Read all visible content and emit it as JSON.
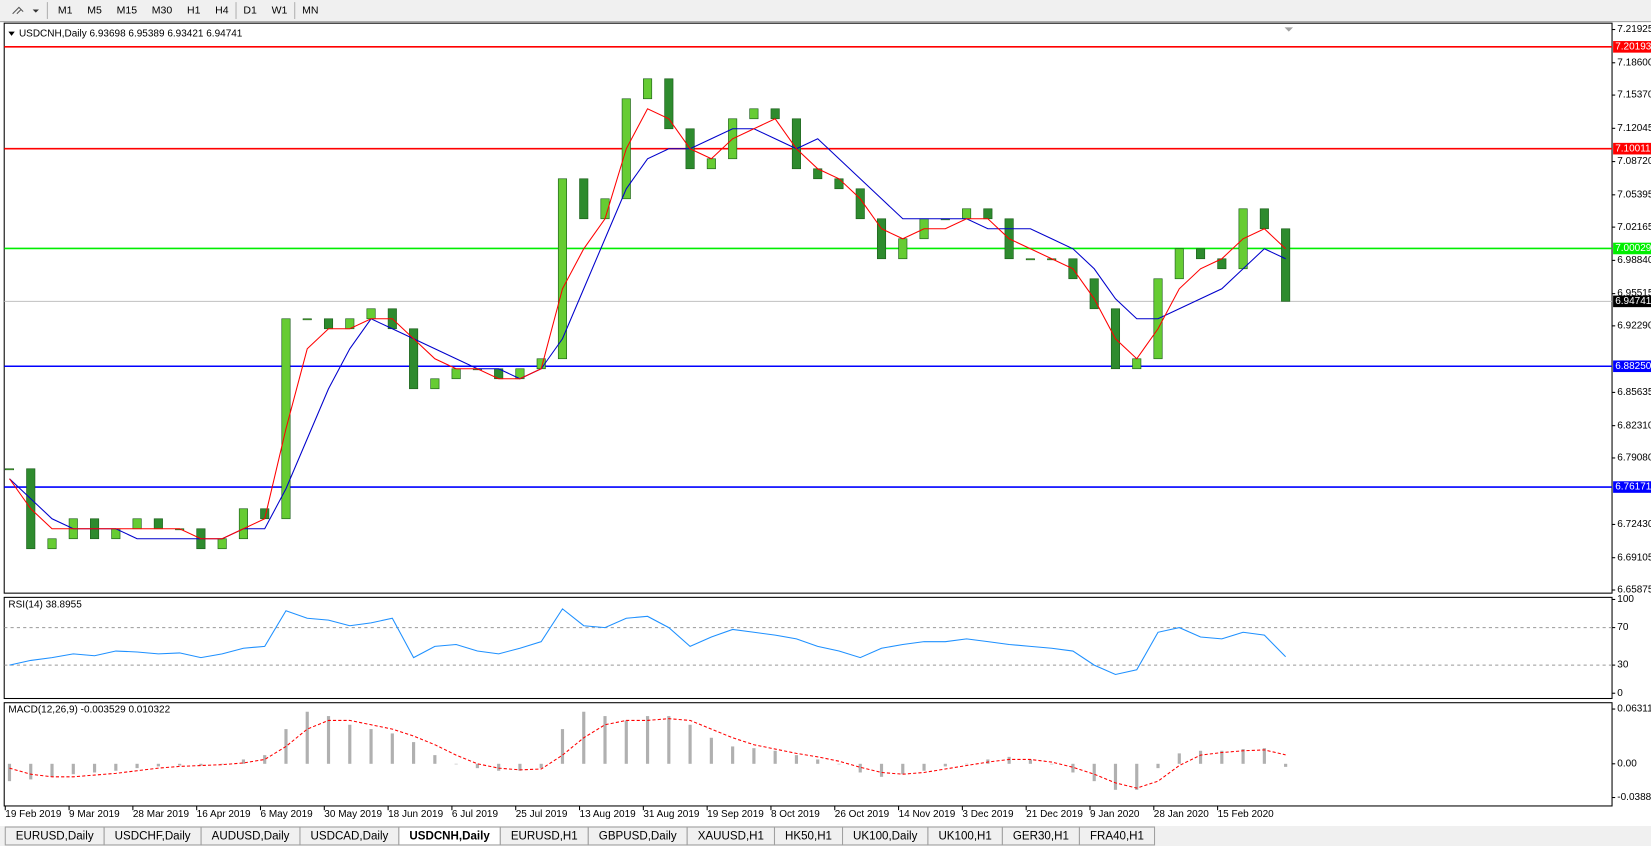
{
  "toolbar": {
    "timeframes": [
      "M1",
      "M5",
      "M15",
      "M30",
      "H1",
      "H4",
      "D1",
      "W1",
      "MN"
    ]
  },
  "chart_data": [
    {
      "type": "candlestick",
      "title": "USDCNH,Daily 6.93698 6.95389 6.93421 6.94741",
      "categories": [
        "19 Feb 2019",
        null,
        null,
        "9 Mar 2019",
        null,
        null,
        "28 Mar 2019",
        null,
        null,
        "16 Apr 2019",
        null,
        null,
        "6 May 2019",
        null,
        null,
        "30 May 2019",
        null,
        null,
        "18 Jun 2019",
        null,
        null,
        "6 Jul 2019",
        null,
        null,
        "25 Jul 2019",
        null,
        null,
        "13 Aug 2019",
        null,
        null,
        "31 Aug 2019",
        null,
        null,
        "19 Sep 2019",
        null,
        null,
        "8 Oct 2019",
        null,
        null,
        "26 Oct 2019",
        null,
        null,
        "14 Nov 2019",
        null,
        null,
        "3 Dec 2019",
        null,
        null,
        "21 Dec 2019",
        null,
        null,
        "9 Jan 2020",
        null,
        null,
        "28 Jan 2020",
        null,
        null,
        "15 Feb 2020",
        null,
        null,
        null
      ],
      "close": [
        6.78,
        6.7,
        6.71,
        6.73,
        6.71,
        6.72,
        6.73,
        6.72,
        6.72,
        6.7,
        6.71,
        6.74,
        6.73,
        6.93,
        6.93,
        6.92,
        6.93,
        6.94,
        6.92,
        6.86,
        6.87,
        6.88,
        6.88,
        6.87,
        6.88,
        6.89,
        7.07,
        7.03,
        7.05,
        7.15,
        7.17,
        7.12,
        7.08,
        7.09,
        7.13,
        7.14,
        7.13,
        7.08,
        7.07,
        7.06,
        7.03,
        6.99,
        7.01,
        7.03,
        7.03,
        7.04,
        7.03,
        6.99,
        6.99,
        6.99,
        6.97,
        6.94,
        6.88,
        6.89,
        6.97,
        7.0,
        6.99,
        6.98,
        7.04,
        7.02,
        6.94741
      ],
      "up_color": "#66cc33",
      "down_color": "#2e8b2e",
      "ma_fast": {
        "color": "#ff0000",
        "values": [
          6.77,
          6.74,
          6.72,
          6.72,
          6.72,
          6.72,
          6.72,
          6.72,
          6.72,
          6.71,
          6.71,
          6.72,
          6.73,
          6.82,
          6.9,
          6.92,
          6.92,
          6.93,
          6.93,
          6.91,
          6.89,
          6.88,
          6.88,
          6.87,
          6.87,
          6.88,
          6.96,
          7.0,
          7.03,
          7.1,
          7.14,
          7.13,
          7.1,
          7.09,
          7.11,
          7.12,
          7.13,
          7.1,
          7.08,
          7.07,
          7.05,
          7.02,
          7.01,
          7.02,
          7.02,
          7.03,
          7.03,
          7.01,
          7.0,
          6.99,
          6.98,
          6.95,
          6.91,
          6.89,
          6.92,
          6.96,
          6.98,
          6.99,
          7.01,
          7.02,
          7.0
        ]
      },
      "ma_slow": {
        "color": "#0000cc",
        "values": [
          6.77,
          6.75,
          6.73,
          6.72,
          6.72,
          6.72,
          6.71,
          6.71,
          6.71,
          6.71,
          6.71,
          6.72,
          6.72,
          6.76,
          6.81,
          6.86,
          6.9,
          6.93,
          6.92,
          6.91,
          6.9,
          6.89,
          6.88,
          6.88,
          6.87,
          6.88,
          6.91,
          6.96,
          7.01,
          7.06,
          7.09,
          7.1,
          7.1,
          7.11,
          7.12,
          7.12,
          7.11,
          7.1,
          7.11,
          7.09,
          7.07,
          7.05,
          7.03,
          7.03,
          7.03,
          7.03,
          7.02,
          7.02,
          7.02,
          7.01,
          7.0,
          6.98,
          6.95,
          6.93,
          6.93,
          6.94,
          6.95,
          6.96,
          6.98,
          7.0,
          6.99
        ]
      },
      "levels": [
        {
          "value": 7.20193,
          "color": "#ff0000"
        },
        {
          "value": 7.10011,
          "color": "#ff0000"
        },
        {
          "value": 7.00029,
          "color": "#00ee00"
        },
        {
          "value": 6.94741,
          "color": "#c0c0c0"
        },
        {
          "value": 6.8825,
          "label": "6.88250",
          "color": "#0000ff"
        },
        {
          "value": 6.76171,
          "color": "#0000ff"
        }
      ],
      "ylim": [
        6.6556,
        7.2256
      ],
      "yticks": [
        7.21925,
        {
          "value": 7.186,
          "label": "7.18600"
        },
        {
          "value": 7.1537,
          "label": "7.15370"
        },
        7.12045,
        {
          "value": 7.0872,
          "label": "7.08720"
        },
        7.05395,
        7.02165,
        {
          "value": 6.9884,
          "label": "6.98840"
        },
        6.95515,
        {
          "value": 6.9229,
          "label": "6.92290"
        },
        6.85635,
        {
          "value": 6.8231,
          "label": "6.82310"
        },
        {
          "value": 6.7908,
          "label": "6.79080"
        },
        {
          "value": 6.7243,
          "label": "6.72430"
        },
        6.69105,
        6.65875
      ]
    },
    {
      "type": "line",
      "title": "RSI(14) 38.8955",
      "color": "#1e90ff",
      "values": [
        30,
        35,
        38,
        42,
        40,
        45,
        44,
        42,
        43,
        38,
        42,
        48,
        50,
        88,
        80,
        78,
        72,
        75,
        80,
        38,
        50,
        52,
        45,
        42,
        48,
        55,
        90,
        72,
        70,
        80,
        82,
        70,
        50,
        60,
        68,
        65,
        62,
        58,
        50,
        45,
        38,
        48,
        52,
        55,
        55,
        58,
        55,
        52,
        50,
        48,
        45,
        30,
        20,
        25,
        65,
        70,
        60,
        58,
        65,
        62,
        38.8955
      ],
      "ylim": [
        0,
        100
      ],
      "yticks": [
        100,
        70,
        30,
        0
      ],
      "grid": "dashed"
    },
    {
      "type": "macd",
      "title": "MACD(12,26,9) -0.003529 0.010322",
      "color": "#b0b0b0",
      "signal_color": "#ff0000",
      "values": [
        -0.02,
        -0.018,
        -0.015,
        -0.012,
        -0.01,
        -0.008,
        -0.005,
        -0.003,
        -0.002,
        -0.002,
        0,
        0.005,
        0.01,
        0.04,
        0.06,
        0.055,
        0.045,
        0.04,
        0.035,
        0.025,
        0.01,
        0,
        -0.005,
        -0.008,
        -0.008,
        -0.005,
        0.04,
        0.06,
        0.055,
        0.05,
        0.055,
        0.055,
        0.045,
        0.03,
        0.02,
        0.018,
        0.015,
        0.01,
        0.005,
        0,
        -0.01,
        -0.015,
        -0.012,
        -0.008,
        -0.003,
        0,
        0.005,
        0.008,
        0.005,
        0,
        -0.01,
        -0.02,
        -0.03,
        -0.03,
        -0.005,
        0.012,
        0.015,
        0.015,
        0.017,
        0.018,
        -0.003529
      ],
      "signal": [
        -0.005,
        -0.012,
        -0.015,
        -0.015,
        -0.013,
        -0.011,
        -0.008,
        -0.005,
        -0.003,
        -0.002,
        -0.001,
        0.001,
        0.005,
        0.02,
        0.04,
        0.05,
        0.05,
        0.045,
        0.04,
        0.032,
        0.022,
        0.01,
        0,
        -0.005,
        -0.007,
        -0.006,
        0.01,
        0.03,
        0.045,
        0.05,
        0.05,
        0.052,
        0.05,
        0.04,
        0.03,
        0.022,
        0.017,
        0.012,
        0.008,
        0.003,
        -0.004,
        -0.01,
        -0.012,
        -0.01,
        -0.006,
        -0.002,
        0.002,
        0.005,
        0.005,
        0.002,
        -0.004,
        -0.012,
        -0.022,
        -0.028,
        -0.02,
        -0.002,
        0.01,
        0.013,
        0.015,
        0.016,
        0.010322
      ],
      "ylim": [
        -0.0486,
        0.0704
      ],
      "yticks": [
        0.06311,
        {
          "value": 0,
          "label": "0.00"
        },
        -0.03887
      ]
    }
  ],
  "tabs": [
    {
      "label": "EURUSD,Daily"
    },
    {
      "label": "USDCHF,Daily"
    },
    {
      "label": "AUDUSD,Daily"
    },
    {
      "label": "USDCAD,Daily"
    },
    {
      "label": "USDCNH,Daily",
      "active": true
    },
    {
      "label": "EURUSD,H1"
    },
    {
      "label": "GBPUSD,Daily"
    },
    {
      "label": "XAUUSD,H1"
    },
    {
      "label": "HK50,H1"
    },
    {
      "label": "UK100,Daily"
    },
    {
      "label": "UK100,H1"
    },
    {
      "label": "GER30,H1"
    },
    {
      "label": "FRA40,H1"
    }
  ]
}
